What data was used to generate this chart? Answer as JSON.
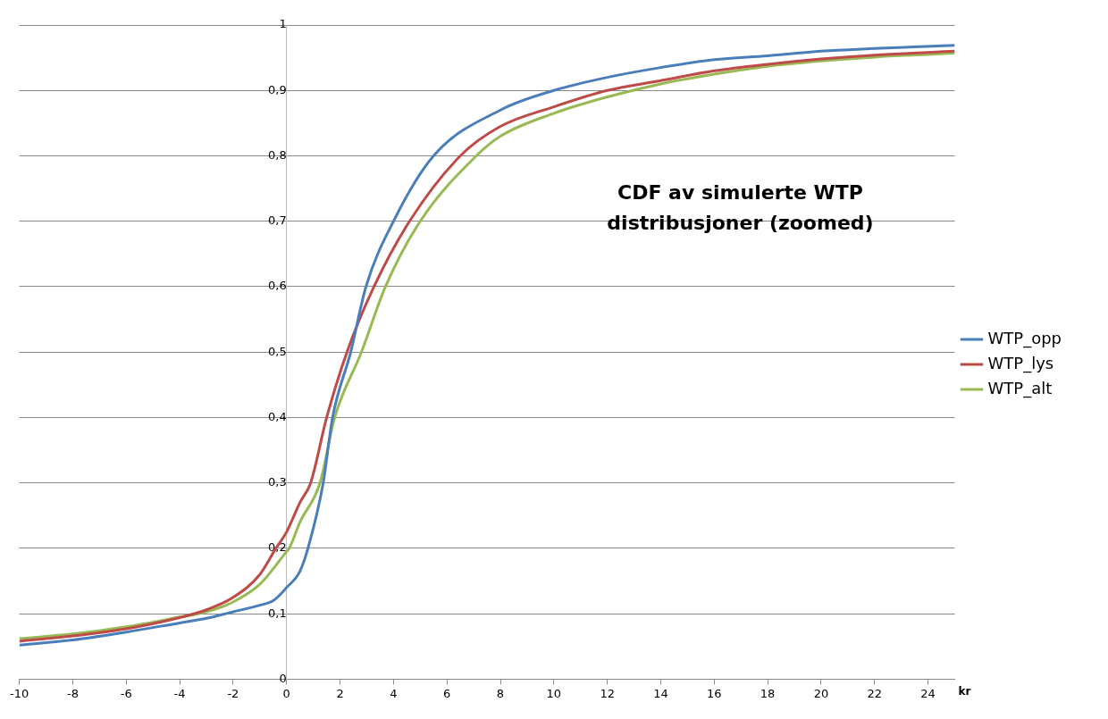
{
  "chart_data": {
    "type": "line",
    "title": "CDF av simulerte WTP distribusjoner (zoomed)",
    "xlabel": "kr",
    "xlim": [
      -10,
      25
    ],
    "xticks": [
      -10,
      -8,
      -6,
      -4,
      -2,
      0,
      2,
      4,
      6,
      8,
      10,
      12,
      14,
      16,
      18,
      20,
      22,
      24
    ],
    "ylim": [
      0,
      1
    ],
    "yticks": [
      0,
      {
        "value": 0.1,
        "label": "0,1"
      },
      {
        "value": 0.2,
        "label": "0,2"
      },
      {
        "value": 0.3,
        "label": "0,3"
      },
      {
        "value": 0.4,
        "label": "0,4"
      },
      {
        "value": 0.5,
        "label": "0,5"
      },
      {
        "value": 0.6,
        "label": "0,6"
      },
      {
        "value": 0.7,
        "label": "0,7"
      },
      {
        "value": 0.8,
        "label": "0,8"
      },
      {
        "value": 0.9,
        "label": "0,9"
      },
      1
    ],
    "grid": "y",
    "legend": "right",
    "marker": "none",
    "line_style": "solid",
    "series": [
      {
        "name": "WTP_opp",
        "color": "#4a7ebb",
        "x": [
          -10,
          -8,
          -6,
          -4,
          -3,
          -2,
          -1,
          -0.5,
          0,
          0.5,
          0.8,
          1.37,
          1.72,
          2.4,
          2.97,
          4.0,
          5.5,
          8,
          10,
          12,
          14,
          16,
          18,
          20,
          22,
          25
        ],
        "values": [
          0.052,
          0.06,
          0.072,
          0.086,
          0.093,
          0.103,
          0.113,
          0.12,
          0.14,
          0.165,
          0.2,
          0.3,
          0.4,
          0.5,
          0.6,
          0.7,
          0.8,
          0.87,
          0.9,
          0.92,
          0.935,
          0.947,
          0.953,
          0.96,
          0.964,
          0.969
        ]
      },
      {
        "name": "WTP_lys",
        "color": "#be4b48",
        "x": [
          -10,
          -8,
          -6,
          -4,
          -3,
          -2,
          -1,
          -0.4,
          0,
          0.5,
          0.9,
          1.5,
          2.26,
          3.27,
          4.6,
          6.5,
          8,
          10,
          12,
          14,
          16,
          18,
          20,
          22,
          25
        ],
        "values": [
          0.058,
          0.066,
          0.077,
          0.094,
          0.106,
          0.125,
          0.16,
          0.2,
          0.225,
          0.27,
          0.3,
          0.4,
          0.5,
          0.6,
          0.7,
          0.8,
          0.845,
          0.875,
          0.9,
          0.915,
          0.93,
          0.94,
          0.948,
          0.954,
          0.96
        ]
      },
      {
        "name": "WTP_alt",
        "color": "#98b954",
        "x": [
          -10,
          -8,
          -6,
          -4,
          -3,
          -2,
          -1,
          0,
          0.1,
          0.5,
          1.25,
          1.8,
          2.8,
          3.7,
          5.0,
          7.1,
          8,
          10,
          12,
          14,
          16,
          18,
          20,
          22,
          25
        ],
        "values": [
          0.062,
          0.069,
          0.08,
          0.095,
          0.103,
          0.118,
          0.145,
          0.195,
          0.2,
          0.24,
          0.3,
          0.4,
          0.5,
          0.6,
          0.7,
          0.8,
          0.83,
          0.865,
          0.89,
          0.91,
          0.925,
          0.937,
          0.945,
          0.951,
          0.957
        ]
      }
    ]
  }
}
